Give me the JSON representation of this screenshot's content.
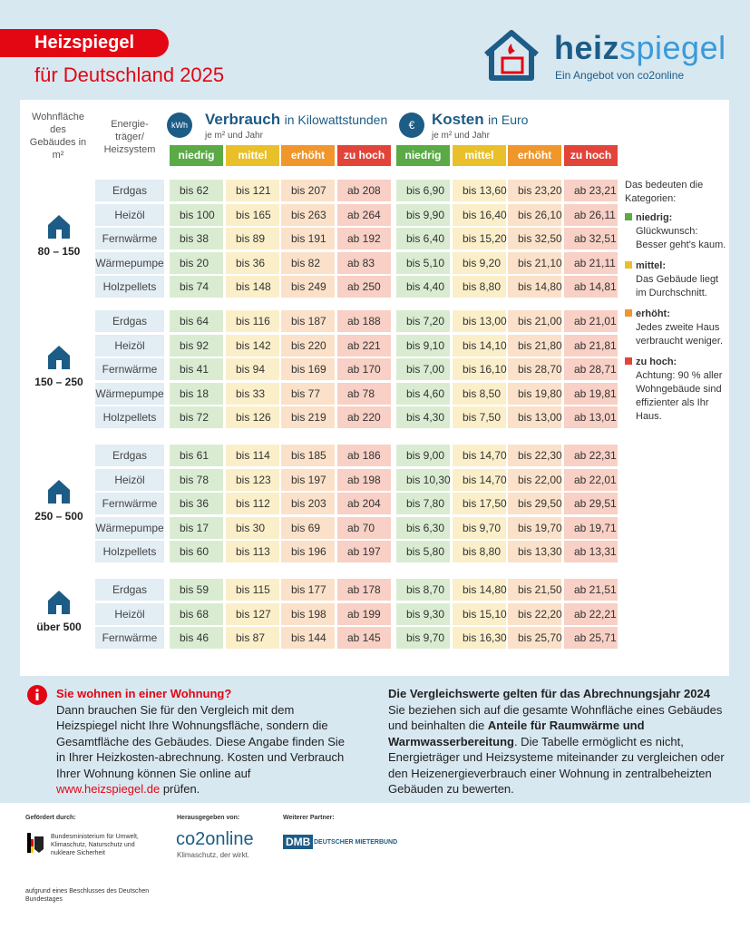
{
  "header": {
    "badge": "Heizspiegel",
    "subtitle": "für Deutschland 2025",
    "logo_a": "heiz",
    "logo_b": "spiegel",
    "logo_sub": "Ein Angebot von co2online"
  },
  "table": {
    "size_head": "Wohnfläche des Gebäudes in m²",
    "carrier_head": "Energie-träger/ Heizsystem",
    "consumption": {
      "icon": "kWh",
      "title": "Verbrauch",
      "unit": "in Kilowattstunden",
      "per": "je m² und Jahr"
    },
    "costs": {
      "icon": "€",
      "title": "Kosten",
      "unit": "in Euro",
      "per": "je m² und Jahr"
    },
    "categories": [
      "niedrig",
      "mittel",
      "erhöht",
      "zu hoch"
    ],
    "groups": [
      {
        "size": "80 – 150",
        "rows": [
          {
            "carrier": "Erdgas",
            "cells": [
              "bis 62",
              "bis 121",
              "bis 207",
              "ab 208",
              "bis 6,90",
              "bis 13,60",
              "bis 23,20",
              "ab 23,21"
            ]
          },
          {
            "carrier": "Heizöl",
            "cells": [
              "bis 100",
              "bis 165",
              "bis 263",
              "ab 264",
              "bis 9,90",
              "bis 16,40",
              "bis 26,10",
              "ab 26,11"
            ]
          },
          {
            "carrier": "Fernwärme",
            "cells": [
              "bis 38",
              "bis 89",
              "bis 191",
              "ab 192",
              "bis 6,40",
              "bis 15,20",
              "bis 32,50",
              "ab 32,51"
            ]
          },
          {
            "carrier": "Wärmepumpe",
            "cells": [
              "bis 20",
              "bis 36",
              "bis 82",
              "ab 83",
              "bis 5,10",
              "bis 9,20",
              "bis 21,10",
              "ab 21,11"
            ]
          },
          {
            "carrier": "Holzpellets",
            "cells": [
              "bis 74",
              "bis 148",
              "bis 249",
              "ab 250",
              "bis 4,40",
              "bis 8,80",
              "bis 14,80",
              "ab 14,81"
            ]
          }
        ]
      },
      {
        "size": "150 – 250",
        "rows": [
          {
            "carrier": "Erdgas",
            "cells": [
              "bis 64",
              "bis 116",
              "bis 187",
              "ab 188",
              "bis 7,20",
              "bis 13,00",
              "bis 21,00",
              "ab 21,01"
            ]
          },
          {
            "carrier": "Heizöl",
            "cells": [
              "bis 92",
              "bis 142",
              "bis 220",
              "ab 221",
              "bis 9,10",
              "bis 14,10",
              "bis 21,80",
              "ab 21,81"
            ]
          },
          {
            "carrier": "Fernwärme",
            "cells": [
              "bis 41",
              "bis 94",
              "bis 169",
              "ab 170",
              "bis 7,00",
              "bis 16,10",
              "bis 28,70",
              "ab 28,71"
            ]
          },
          {
            "carrier": "Wärmepumpe",
            "cells": [
              "bis 18",
              "bis 33",
              "bis 77",
              "ab 78",
              "bis 4,60",
              "bis 8,50",
              "bis 19,80",
              "ab 19,81"
            ]
          },
          {
            "carrier": "Holzpellets",
            "cells": [
              "bis 72",
              "bis 126",
              "bis 219",
              "ab 220",
              "bis 4,30",
              "bis 7,50",
              "bis 13,00",
              "ab 13,01"
            ]
          }
        ]
      },
      {
        "size": "250 – 500",
        "rows": [
          {
            "carrier": "Erdgas",
            "cells": [
              "bis 61",
              "bis 114",
              "bis 185",
              "ab 186",
              "bis 9,00",
              "bis 14,70",
              "bis 22,30",
              "ab 22,31"
            ]
          },
          {
            "carrier": "Heizöl",
            "cells": [
              "bis 78",
              "bis 123",
              "bis 197",
              "ab 198",
              "bis 10,30",
              "bis 14,70",
              "bis 22,00",
              "ab 22,01"
            ]
          },
          {
            "carrier": "Fernwärme",
            "cells": [
              "bis 36",
              "bis 112",
              "bis 203",
              "ab 204",
              "bis 7,80",
              "bis 17,50",
              "bis 29,50",
              "ab 29,51"
            ]
          },
          {
            "carrier": "Wärmepumpe",
            "cells": [
              "bis 17",
              "bis 30",
              "bis 69",
              "ab 70",
              "bis 6,30",
              "bis 9,70",
              "bis 19,70",
              "ab 19,71"
            ]
          },
          {
            "carrier": "Holzpellets",
            "cells": [
              "bis 60",
              "bis 113",
              "bis 196",
              "ab 197",
              "bis 5,80",
              "bis 8,80",
              "bis 13,30",
              "ab 13,31"
            ]
          }
        ]
      },
      {
        "size": "über 500",
        "rows": [
          {
            "carrier": "Erdgas",
            "cells": [
              "bis 59",
              "bis 115",
              "bis 177",
              "ab 178",
              "bis 8,70",
              "bis 14,80",
              "bis 21,50",
              "ab 21,51"
            ]
          },
          {
            "carrier": "Heizöl",
            "cells": [
              "bis 68",
              "bis 127",
              "bis 198",
              "ab 199",
              "bis 9,30",
              "bis 15,10",
              "bis 22,20",
              "ab 22,21"
            ]
          },
          {
            "carrier": "Fernwärme",
            "cells": [
              "bis 46",
              "bis 87",
              "bis 144",
              "ab 145",
              "bis 9,70",
              "bis 16,30",
              "bis 25,70",
              "ab 25,71"
            ]
          }
        ]
      }
    ]
  },
  "legend": {
    "title": "Das bedeuten die Kategorien:",
    "items": [
      {
        "term": "niedrig:",
        "text": "Glückwunsch: Besser geht's kaum."
      },
      {
        "term": "mittel:",
        "text": "Das Gebäude liegt im Durchschnitt."
      },
      {
        "term": "erhöht:",
        "text": "Jedes zweite Haus verbraucht weniger."
      },
      {
        "term": "zu hoch:",
        "text": "Achtung: 90 % aller Wohngebäude sind effizienter als Ihr Haus."
      }
    ]
  },
  "notes": {
    "left": {
      "title": "Sie wohnen in einer Wohnung?",
      "text": "Dann brauchen Sie für den Vergleich mit dem Heizspiegel nicht Ihre Wohnungsfläche, sondern die Gesamtfläche des Gebäudes. Diese Angabe finden Sie in Ihrer Heizkosten-abrechnung. Kosten und Verbrauch Ihrer Wohnung können Sie online auf",
      "link": "www.heizspiegel.de",
      "tail": "prüfen."
    },
    "right": {
      "title": "Die Vergleichswerte gelten für das Abrechnungsjahr 2024",
      "text": "Sie beziehen sich auf die gesamte Wohnfläche eines Gebäudes und beinhalten die",
      "bold": "Anteile für Raumwärme und Warmwasserbereitung",
      "tail": ". Die Tabelle ermöglicht es nicht, Energieträger und Heizsysteme miteinander zu vergleichen oder den Heizenergieverbrauch einer Wohnung in zentralbeheizten Gebäuden zu bewerten."
    }
  },
  "footer": {
    "funded": "Gefördert durch:",
    "ministry": "Bundesministerium für Umwelt, Klimaschutz, Naturschutz und nukleare Sicherheit",
    "resolution": "aufgrund eines Beschlusses des Deutschen Bundestages",
    "published": "Herausgegeben von:",
    "co2": "co2online",
    "co2_sub": "Klimaschutz, der wirkt.",
    "partner": "Weiterer Partner:",
    "dmb": "DMB",
    "dmb_sub": "DEUTSCHER MIETERBUND"
  }
}
